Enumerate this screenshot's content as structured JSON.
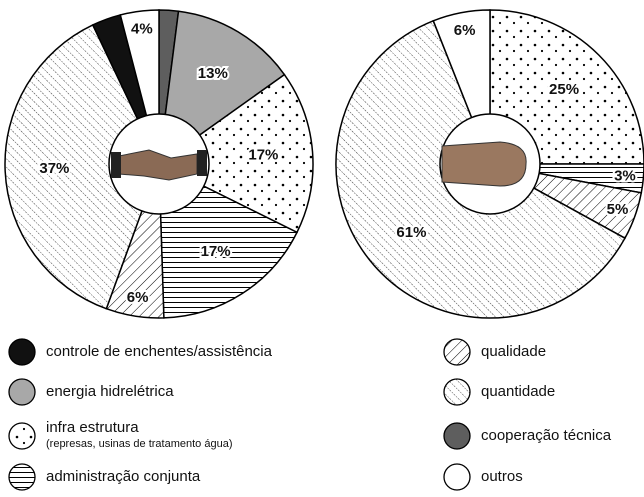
{
  "chart_data": {
    "type": "pie",
    "categories": [
      "controle de enchentes/assistência",
      "energia hidrelétrica",
      "infra estrutura",
      "administração conjunta",
      "qualidade",
      "quantidade",
      "cooperação técnica",
      "outros"
    ],
    "category_notes": [
      null,
      null,
      "(represas, usinas de tratamento água)",
      null,
      null,
      null,
      null,
      null
    ],
    "patterns": [
      "solid-black",
      "solid-gray",
      "dots",
      "horizontal",
      "hatch",
      "fine-diagonal",
      "solid-dark",
      "white"
    ],
    "series": [
      {
        "values": [
          3,
          13,
          17,
          17,
          6,
          37,
          2,
          4
        ],
        "value_labels": [
          null,
          "13%",
          "17%",
          "17%",
          "6%",
          "37%",
          null,
          "4%"
        ],
        "order": [
          6,
          1,
          2,
          3,
          4,
          5,
          0,
          7
        ]
      },
      {
        "values": [
          null,
          null,
          25,
          3,
          5,
          61,
          null,
          6
        ],
        "value_labels": [
          null,
          null,
          "25%",
          "3%",
          "5%",
          "61%",
          null,
          "6%"
        ],
        "order": [
          2,
          3,
          4,
          5,
          7
        ]
      }
    ]
  }
}
